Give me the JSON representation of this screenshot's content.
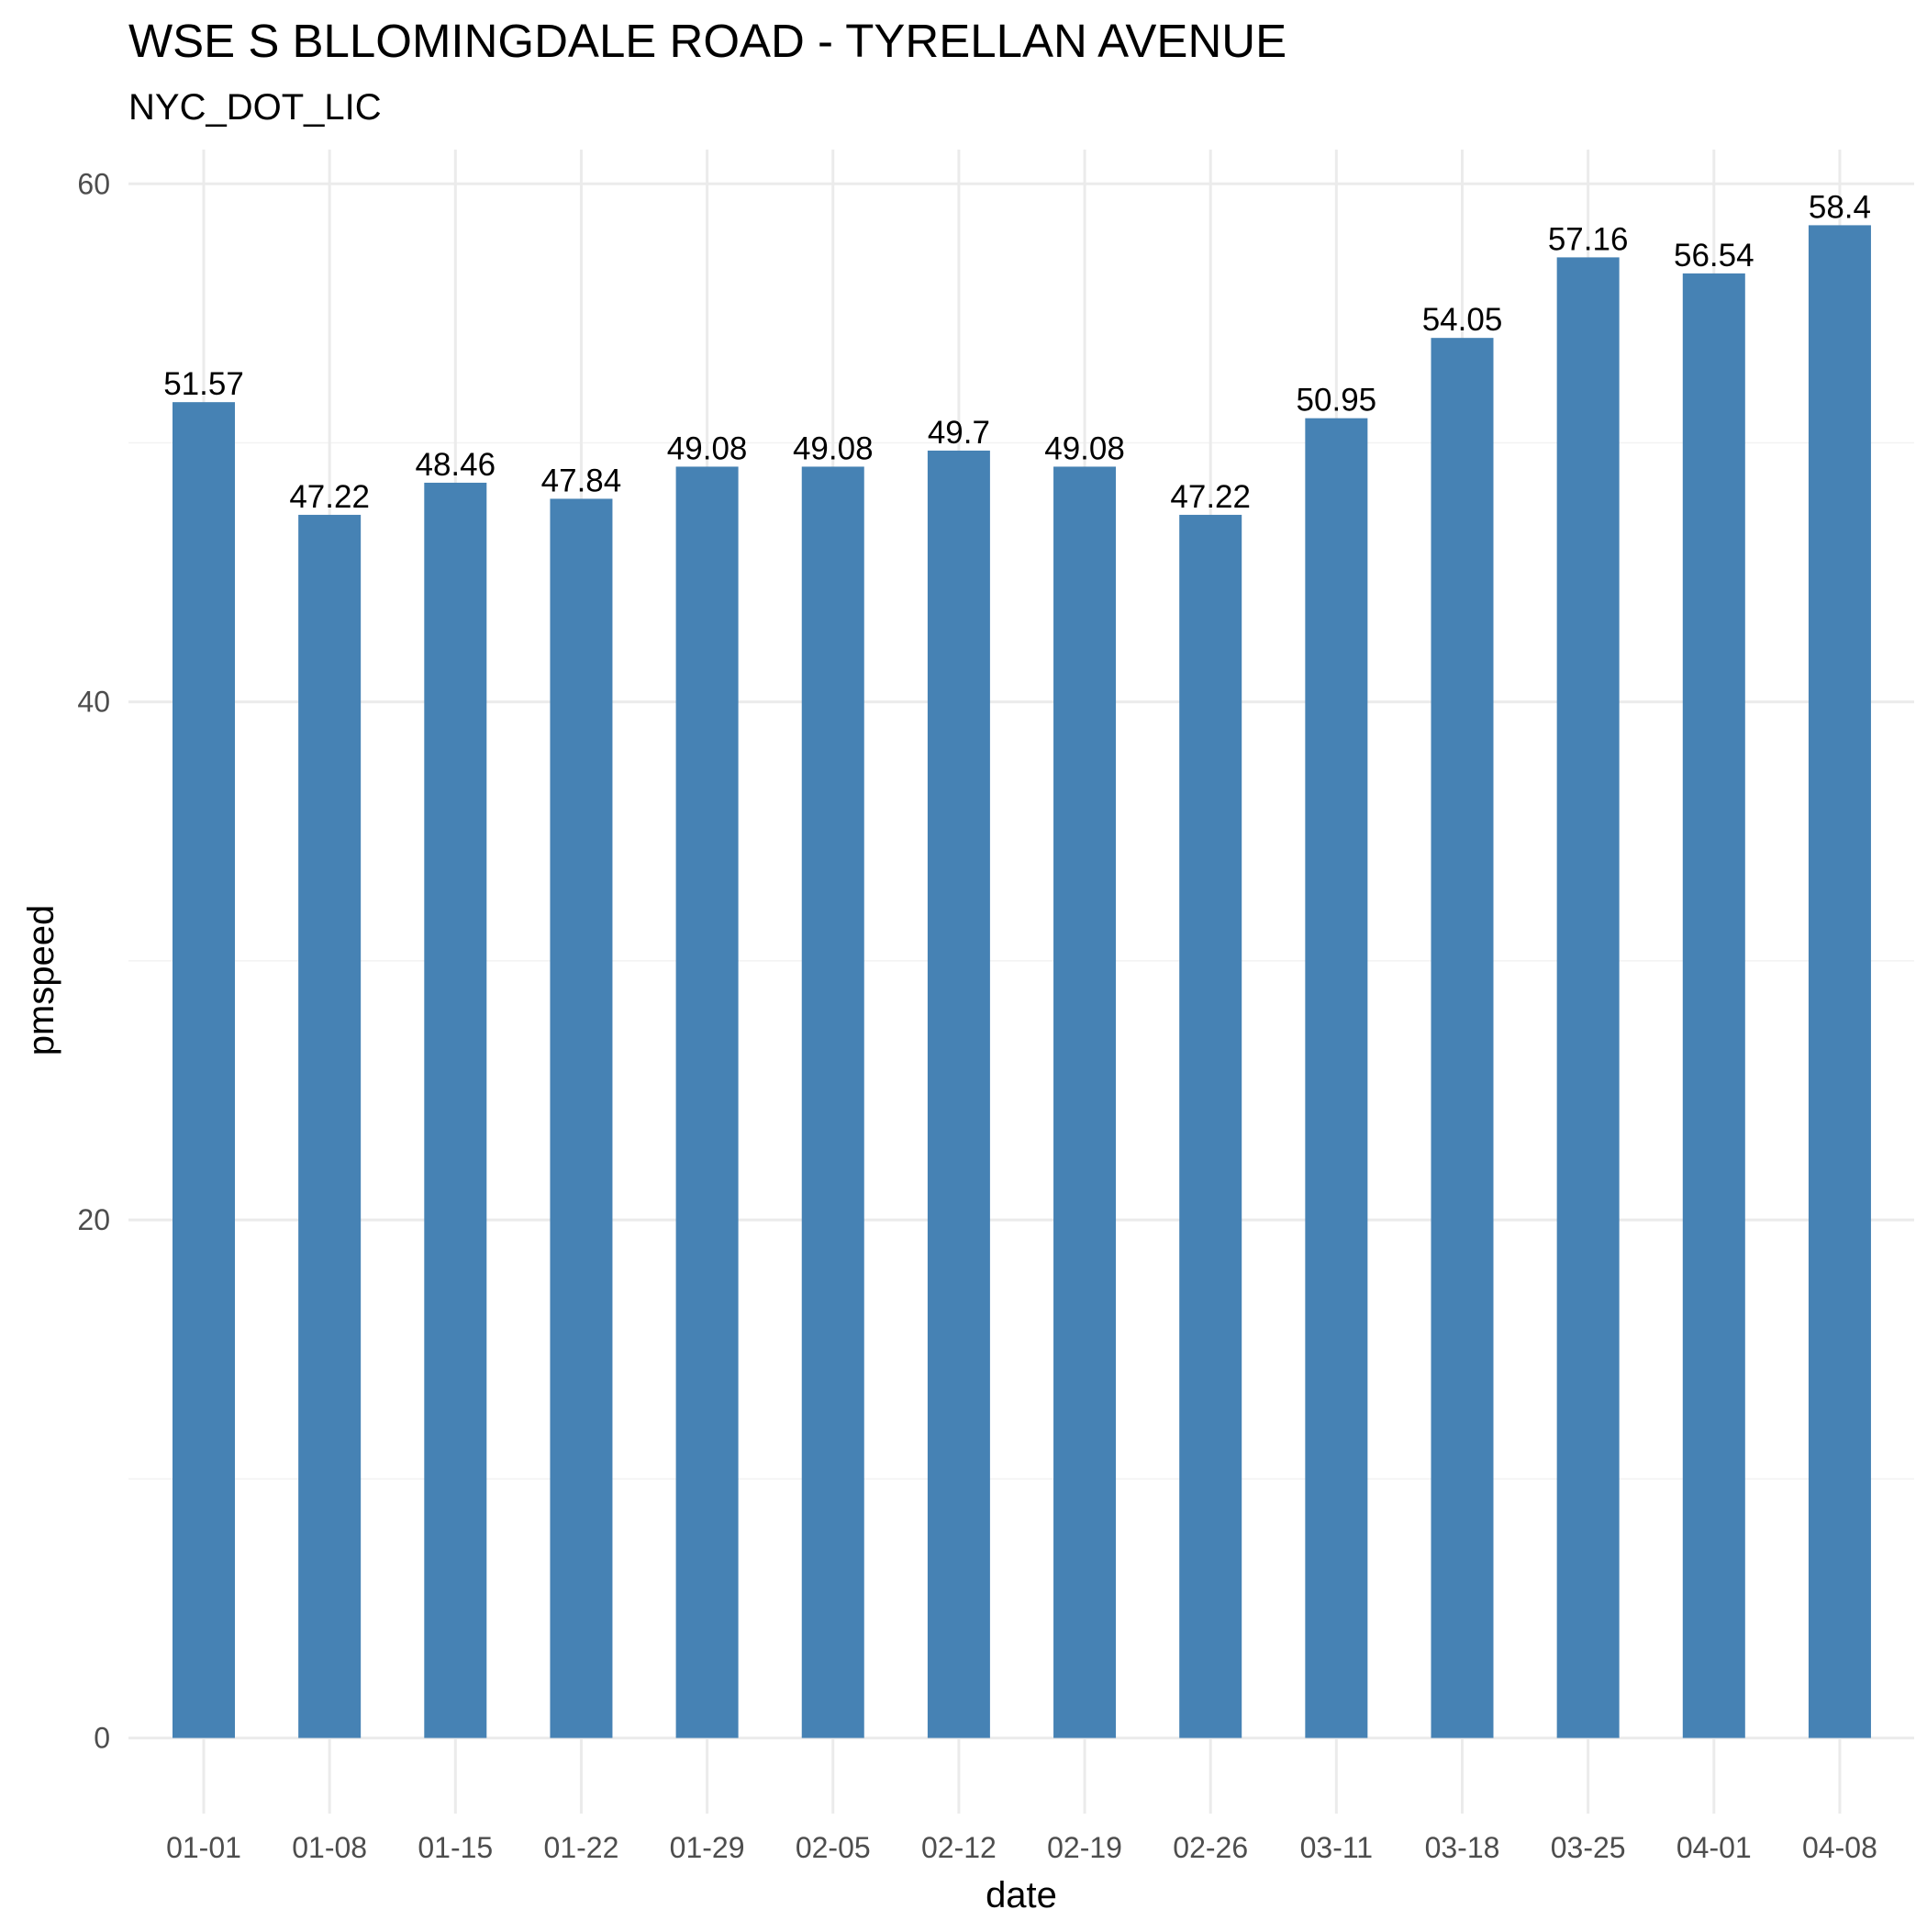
{
  "chart_data": {
    "type": "bar",
    "title": "WSE S BLLOMINGDALE ROAD - TYRELLAN AVENUE",
    "subtitle": "NYC_DOT_LIC",
    "xlabel": "date",
    "ylabel": "pmspeed",
    "categories": [
      "01-01",
      "01-08",
      "01-15",
      "01-22",
      "01-29",
      "02-05",
      "02-12",
      "02-19",
      "02-26",
      "03-11",
      "03-18",
      "03-25",
      "04-01",
      "04-08"
    ],
    "values": [
      51.57,
      47.22,
      48.46,
      47.84,
      49.08,
      49.08,
      49.7,
      49.08,
      47.22,
      50.95,
      54.05,
      57.16,
      56.54,
      58.4
    ],
    "value_labels": [
      "51.57",
      "47.22",
      "48.46",
      "47.84",
      "49.08",
      "49.08",
      "49.7",
      "49.08",
      "47.22",
      "50.95",
      "54.05",
      "57.16",
      "56.54",
      "58.4"
    ],
    "yticks": [
      0,
      20,
      40,
      60
    ],
    "ylim": [
      -2.92,
      61.32
    ],
    "grid": true,
    "legend": "none",
    "bar_color": "#4682b4"
  }
}
